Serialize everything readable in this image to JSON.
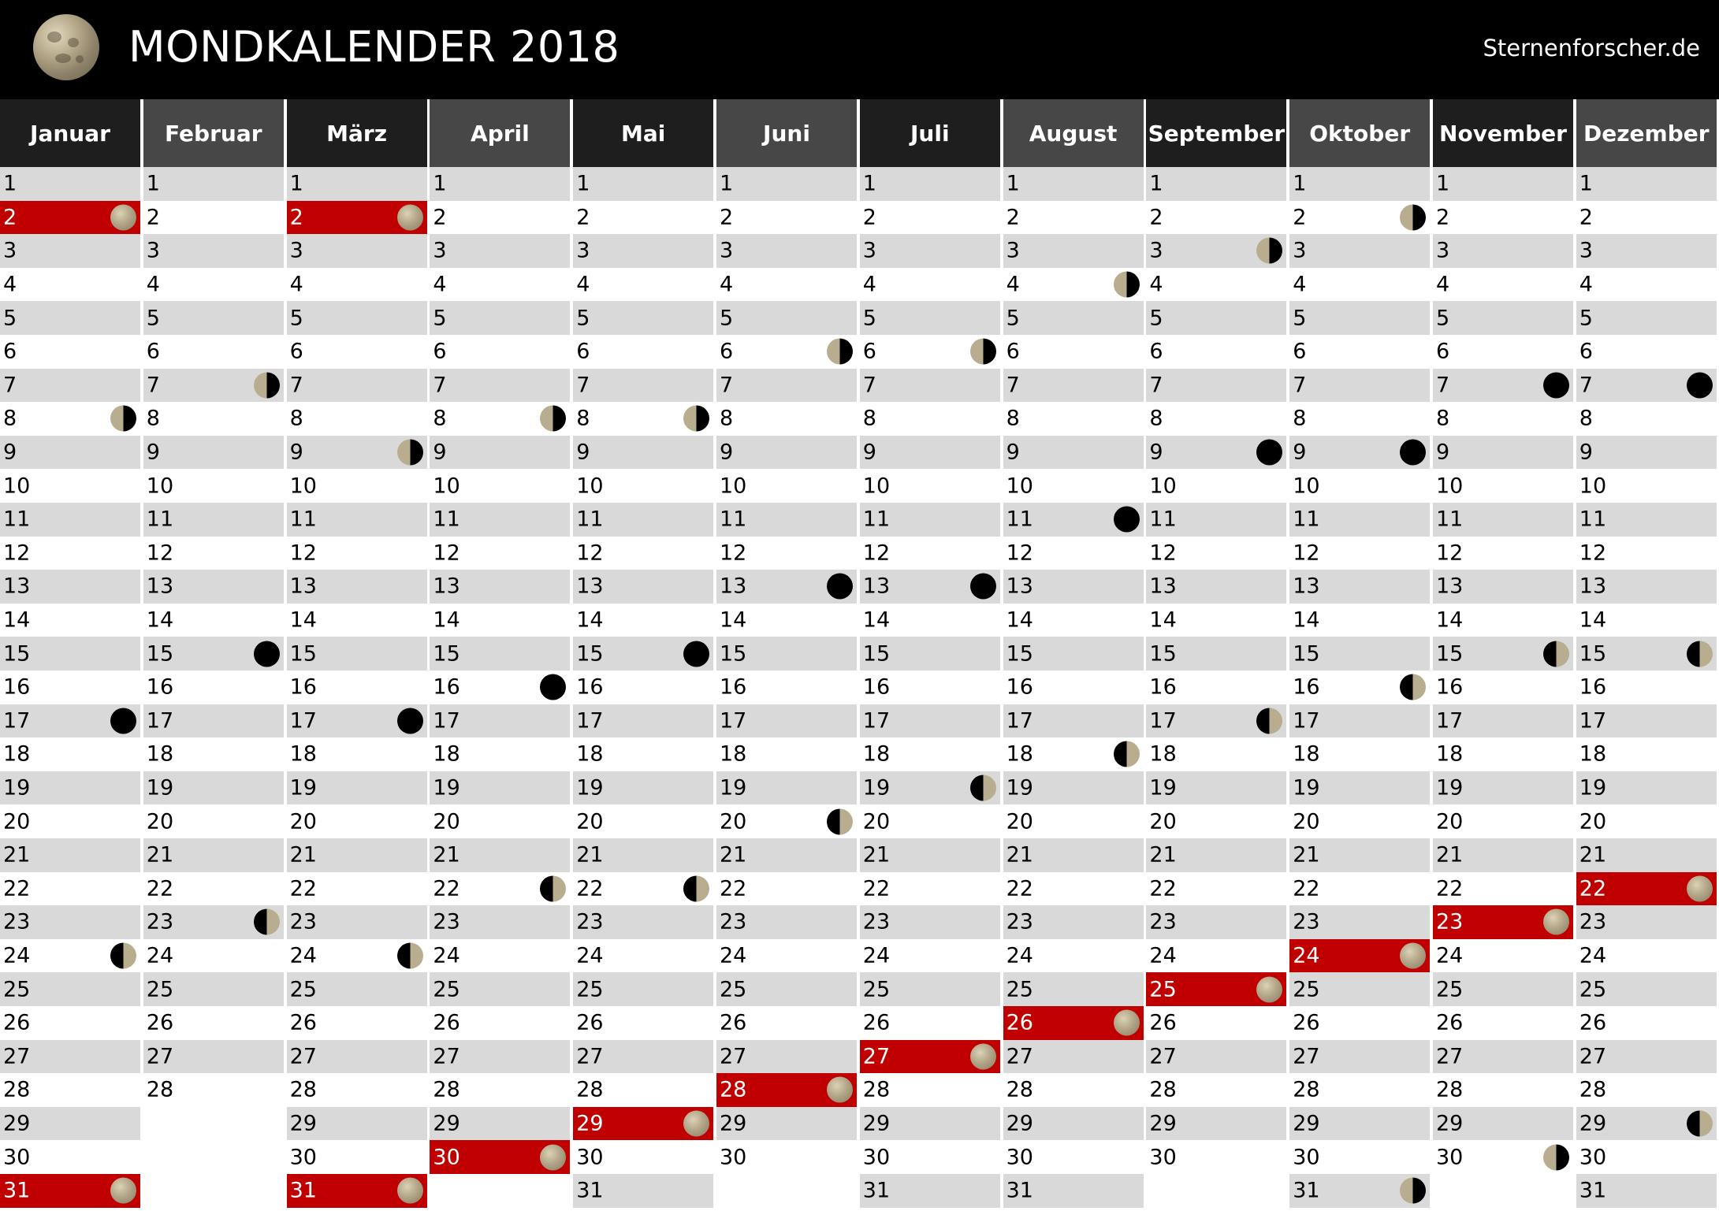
{
  "header": {
    "title": "MONDKALENDER 2018",
    "site": "Sternenforscher.de",
    "logo_icon": "full-moon-icon"
  },
  "legend": {
    "full": "full-moon-icon",
    "new": "new-moon-icon",
    "fq": "first-quarter-icon",
    "lq": "last-quarter-icon"
  },
  "colors": {
    "full_moon_highlight": "#c00000",
    "row_shade": "#d9d9d9",
    "header_dark": "#1e1e1e",
    "header_mid": "#474747"
  },
  "months": [
    {
      "name": "Januar",
      "days": 31,
      "full": [
        2,
        31
      ],
      "new": [
        17
      ],
      "fq": [
        24
      ],
      "lq": [
        8
      ]
    },
    {
      "name": "Februar",
      "days": 28,
      "full": [],
      "new": [
        15
      ],
      "fq": [
        23
      ],
      "lq": [
        7
      ]
    },
    {
      "name": "März",
      "days": 31,
      "full": [
        2,
        31
      ],
      "new": [
        17
      ],
      "fq": [
        24
      ],
      "lq": [
        9
      ]
    },
    {
      "name": "April",
      "days": 30,
      "full": [
        30
      ],
      "new": [
        16
      ],
      "fq": [
        22
      ],
      "lq": [
        8
      ]
    },
    {
      "name": "Mai",
      "days": 31,
      "full": [
        29
      ],
      "new": [
        15
      ],
      "fq": [
        22
      ],
      "lq": [
        8
      ]
    },
    {
      "name": "Juni",
      "days": 30,
      "full": [
        28
      ],
      "new": [
        13
      ],
      "fq": [
        20
      ],
      "lq": [
        6
      ]
    },
    {
      "name": "Juli",
      "days": 31,
      "full": [
        27
      ],
      "new": [
        13
      ],
      "fq": [
        19
      ],
      "lq": [
        6
      ]
    },
    {
      "name": "August",
      "days": 31,
      "full": [
        26
      ],
      "new": [
        11
      ],
      "fq": [
        18
      ],
      "lq": [
        4
      ]
    },
    {
      "name": "September",
      "days": 30,
      "full": [
        25
      ],
      "new": [
        9
      ],
      "fq": [
        17
      ],
      "lq": [
        3
      ]
    },
    {
      "name": "Oktober",
      "days": 31,
      "full": [
        24
      ],
      "new": [
        9
      ],
      "fq": [
        16
      ],
      "lq": [
        2,
        31
      ]
    },
    {
      "name": "November",
      "days": 30,
      "full": [
        23
      ],
      "new": [
        7
      ],
      "fq": [
        15
      ],
      "lq": [
        30
      ]
    },
    {
      "name": "Dezember",
      "days": 31,
      "full": [
        22
      ],
      "new": [
        7
      ],
      "fq": [
        15,
        29
      ],
      "lq": []
    }
  ]
}
